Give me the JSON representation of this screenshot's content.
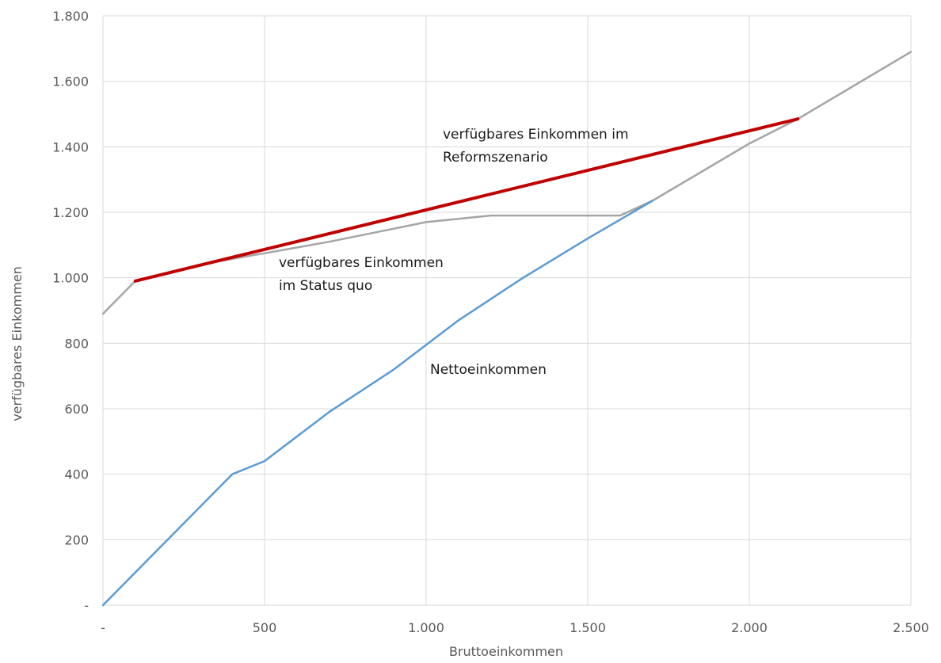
{
  "chart_data": {
    "type": "line",
    "xlabel": "Bruttoeinkommen",
    "ylabel": "verfügbares Einkommen",
    "xlim": [
      0,
      2500
    ],
    "ylim": [
      0,
      1800
    ],
    "x_ticks": [
      {
        "value": 0,
        "label": "-"
      },
      {
        "value": 500,
        "label": "500"
      },
      {
        "value": 1000,
        "label": "1.000"
      },
      {
        "value": 1500,
        "label": "1.500"
      },
      {
        "value": 2000,
        "label": "2.000"
      },
      {
        "value": 2500,
        "label": "2.500"
      }
    ],
    "y_ticks": [
      {
        "value": 0,
        "label": "-"
      },
      {
        "value": 200,
        "label": "200"
      },
      {
        "value": 400,
        "label": "400"
      },
      {
        "value": 600,
        "label": "600"
      },
      {
        "value": 800,
        "label": "800"
      },
      {
        "value": 1000,
        "label": "1.000"
      },
      {
        "value": 1200,
        "label": "1.200"
      },
      {
        "value": 1400,
        "label": "1.400"
      },
      {
        "value": 1600,
        "label": "1.600"
      },
      {
        "value": 1800,
        "label": "1.800"
      }
    ],
    "grid": true,
    "legend": "none",
    "series": [
      {
        "id": "netto",
        "color": "#5b9bd5",
        "points": [
          [
            0,
            0
          ],
          [
            400,
            400
          ],
          [
            500,
            440
          ],
          [
            700,
            590
          ],
          [
            900,
            720
          ],
          [
            1100,
            870
          ],
          [
            1300,
            1000
          ],
          [
            1500,
            1120
          ],
          [
            1700,
            1235
          ]
        ]
      },
      {
        "id": "status-quo",
        "color": "#a5a5a5",
        "points": [
          [
            0,
            890
          ],
          [
            100,
            990
          ],
          [
            300,
            1040
          ],
          [
            500,
            1075
          ],
          [
            700,
            1110
          ],
          [
            900,
            1150
          ],
          [
            1000,
            1170
          ],
          [
            1100,
            1180
          ],
          [
            1200,
            1190
          ],
          [
            1400,
            1190
          ],
          [
            1600,
            1190
          ],
          [
            1700,
            1235
          ],
          [
            2000,
            1410
          ],
          [
            2150,
            1485
          ],
          [
            2500,
            1690
          ]
        ]
      },
      {
        "id": "reform",
        "color": "#c00000",
        "points": [
          [
            100,
            990
          ],
          [
            2150,
            1485
          ]
        ]
      }
    ],
    "annotations": [
      {
        "id": "reform",
        "lines": [
          "verfügbares Einkommen im",
          "Reformszenario"
        ]
      },
      {
        "id": "status-quo",
        "lines": [
          "verfügbares Einkommen",
          "im Status quo"
        ]
      },
      {
        "id": "netto",
        "lines": [
          "Nettoeinkommen"
        ]
      }
    ]
  }
}
